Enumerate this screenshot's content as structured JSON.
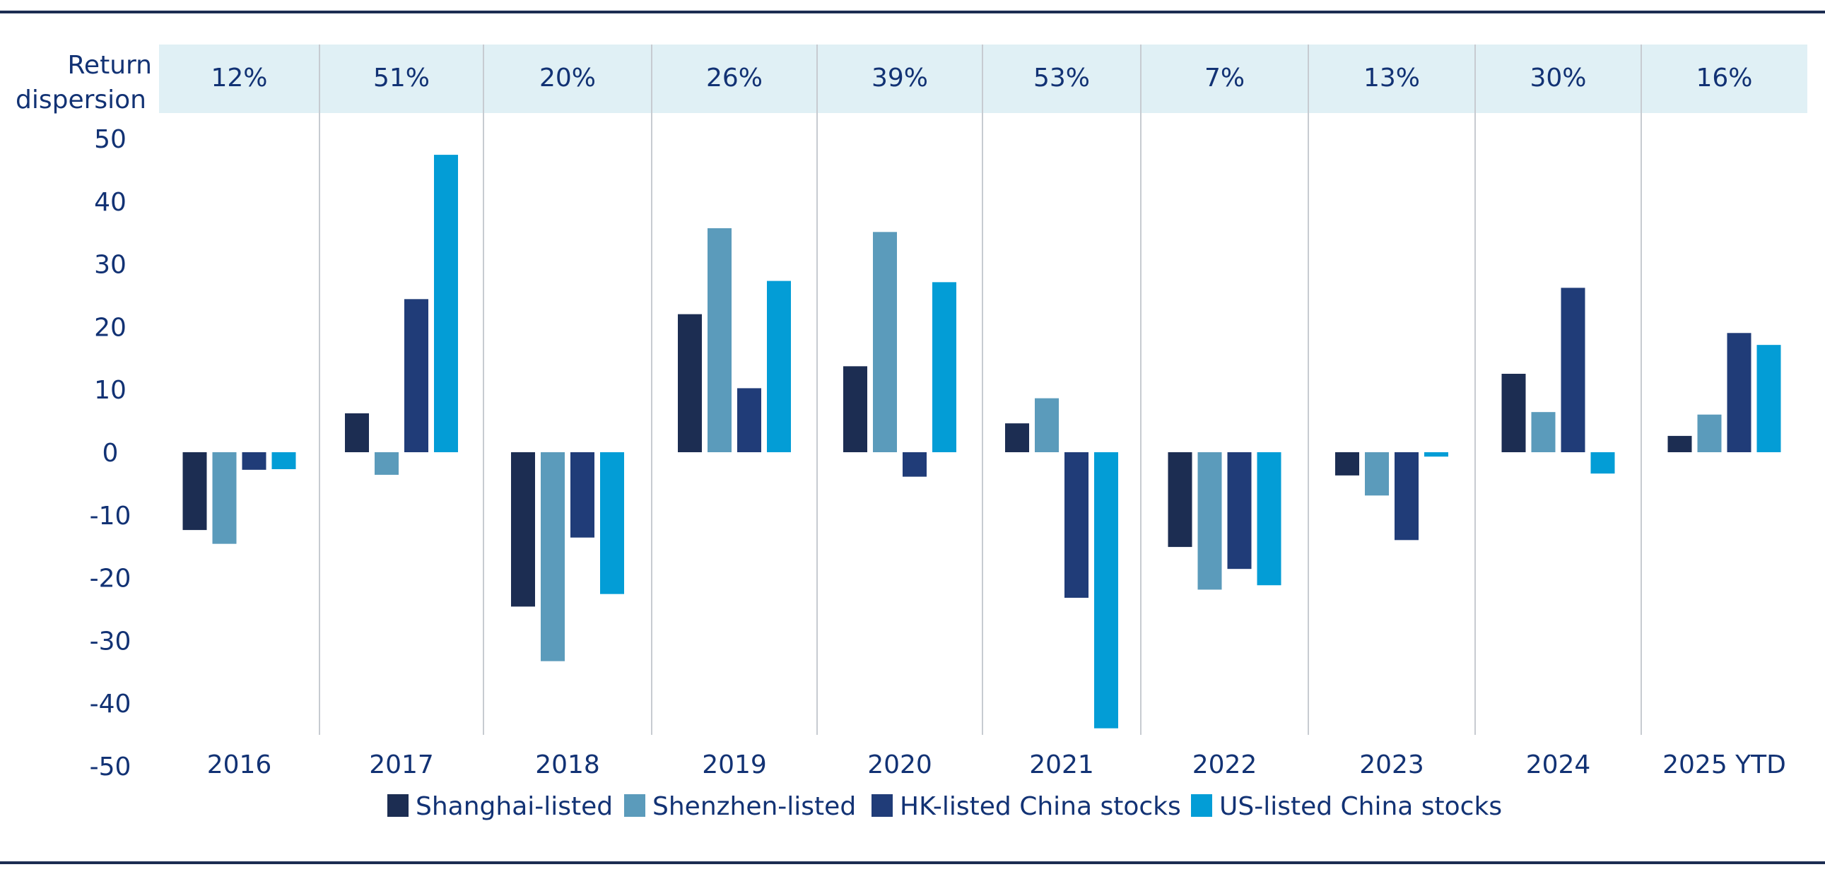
{
  "chart_data": {
    "type": "bar",
    "categories": [
      "2016",
      "2017",
      "2018",
      "2019",
      "2020",
      "2021",
      "2022",
      "2023",
      "2024",
      "2025 YTD"
    ],
    "series": [
      {
        "name": "Shanghai-listed",
        "color": "#1c2d52",
        "values": [
          -12.4,
          6.2,
          -24.6,
          22.0,
          13.7,
          4.6,
          -15.1,
          -3.7,
          12.5,
          2.6
        ]
      },
      {
        "name": "Shenzhen-listed",
        "color": "#5b9bbb",
        "values": [
          -14.6,
          -3.6,
          -33.3,
          35.7,
          35.1,
          8.6,
          -21.9,
          -6.9,
          6.4,
          6.0
        ]
      },
      {
        "name": "HK-listed China stocks",
        "color": "#203c78",
        "values": [
          -2.8,
          24.4,
          -13.6,
          10.2,
          -3.9,
          -23.2,
          -18.6,
          -14.0,
          26.2,
          19.0
        ]
      },
      {
        "name": "US-listed China stocks",
        "color": "#039dd6",
        "values": [
          -2.7,
          47.4,
          -22.6,
          27.3,
          27.1,
          -44.0,
          -21.2,
          -0.7,
          -3.4,
          17.1
        ]
      }
    ],
    "ylim": [
      -50,
      50
    ],
    "yticks": [
      50,
      40,
      30,
      20,
      10,
      0,
      -10,
      -20,
      -30,
      -40,
      -50
    ],
    "dispersion": {
      "label_line1": "Return",
      "label_line2": "dispersion",
      "values": [
        "12%",
        "51%",
        "20%",
        "26%",
        "39%",
        "53%",
        "7%",
        "13%",
        "30%",
        "16%"
      ],
      "band_color": "#e0f0f5"
    },
    "colors": {
      "axis_text": "#123274",
      "rule": "#1c2d52",
      "divider": "#c7cbd1"
    },
    "title": "",
    "xlabel": "",
    "ylabel": ""
  }
}
